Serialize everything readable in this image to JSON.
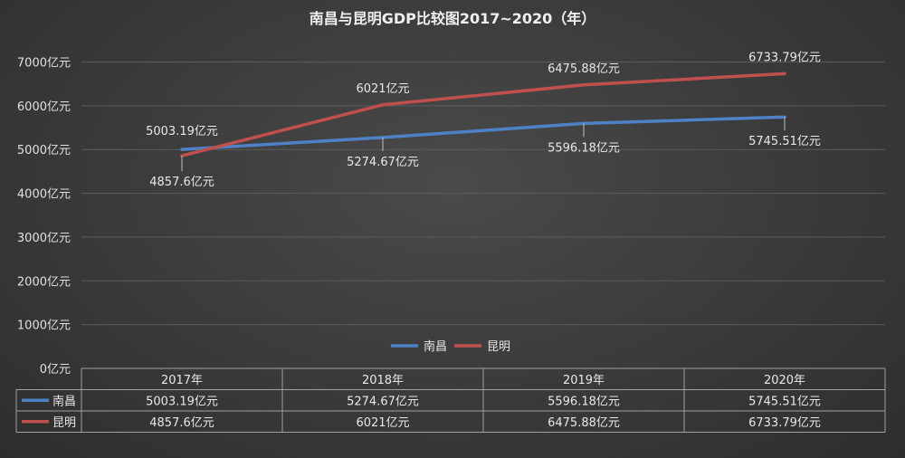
{
  "chart_data": {
    "type": "line",
    "title": "南昌与昆明GDP比较图2017~2020（年）",
    "categories": [
      "2017年",
      "2018年",
      "2019年",
      "2020年"
    ],
    "y_ticks": [
      "0亿元",
      "1000亿元",
      "2000亿元",
      "3000亿元",
      "4000亿元",
      "5000亿元",
      "6000亿元",
      "7000亿元"
    ],
    "ylim": [
      0,
      7000
    ],
    "grid": true,
    "legend_position": "bottom",
    "series": [
      {
        "name": "南昌",
        "color": "#4f81c7",
        "values": [
          5003.19,
          5274.67,
          5596.18,
          5745.51
        ],
        "labels": [
          "5003.19亿元",
          "5274.67亿元",
          "5596.18亿元",
          "5745.51亿元"
        ]
      },
      {
        "name": "昆明",
        "color": "#c0504d",
        "values": [
          4857.6,
          6021,
          6475.88,
          6733.79
        ],
        "labels": [
          "4857.6亿元",
          "6021亿元",
          "6475.88亿元",
          "6733.79亿元"
        ]
      }
    ]
  }
}
